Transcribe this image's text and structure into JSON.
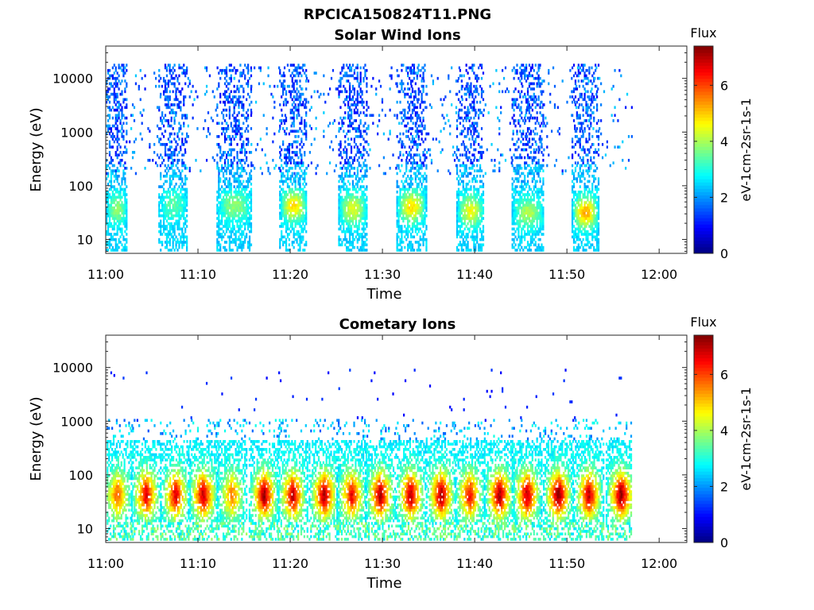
{
  "figure": {
    "title": "RPCICA150824T11.PNG"
  },
  "chart_data": [
    {
      "type": "heatmap",
      "title": "Solar Wind Ions",
      "xlabel": "Time",
      "ylabel": "Energy (eV)",
      "x_ticks": [
        "11:00",
        "11:10",
        "11:20",
        "11:30",
        "11:40",
        "11:50",
        "12:00"
      ],
      "xlim_minutes": [
        0,
        63
      ],
      "y_scale": "log",
      "y_ticks": [
        "10",
        "100",
        "1000",
        "10000"
      ],
      "ylim": [
        5.5,
        40000
      ],
      "data_end_minute": 57,
      "colorbar": {
        "label": "eV-1cm-2sr-1s-1",
        "title": "Flux",
        "ticks": [
          "0",
          "2",
          "4",
          "6"
        ],
        "range": [
          0,
          7.4
        ],
        "colormap": "jet"
      },
      "pulses": [
        {
          "start": 0.0,
          "end": 2.3,
          "peak_energy": 35,
          "peak_flux": 3.6
        },
        {
          "start": 5.7,
          "end": 8.8,
          "peak_energy": 40,
          "peak_flux": 3.2
        },
        {
          "start": 12.0,
          "end": 15.8,
          "peak_energy": 40,
          "peak_flux": 3.6
        },
        {
          "start": 18.8,
          "end": 21.8,
          "peak_energy": 40,
          "peak_flux": 4.6
        },
        {
          "start": 25.2,
          "end": 28.3,
          "peak_energy": 35,
          "peak_flux": 4.2
        },
        {
          "start": 31.5,
          "end": 34.7,
          "peak_energy": 38,
          "peak_flux": 4.6
        },
        {
          "start": 38.0,
          "end": 41.0,
          "peak_energy": 32,
          "peak_flux": 4.3
        },
        {
          "start": 44.0,
          "end": 47.5,
          "peak_energy": 30,
          "peak_flux": 3.8
        },
        {
          "start": 50.5,
          "end": 53.4,
          "peak_energy": 30,
          "peak_flux": 5.0
        }
      ]
    },
    {
      "type": "heatmap",
      "title": "Cometary Ions",
      "xlabel": "Time",
      "ylabel": "Energy (eV)",
      "x_ticks": [
        "11:00",
        "11:10",
        "11:20",
        "11:30",
        "11:40",
        "11:50",
        "12:00"
      ],
      "xlim_minutes": [
        0,
        63
      ],
      "y_scale": "log",
      "y_ticks": [
        "10",
        "100",
        "1000",
        "10000"
      ],
      "ylim": [
        5.5,
        40000
      ],
      "data_end_minute": 57,
      "colorbar": {
        "label": "eV-1cm-2sr-1s-1",
        "title": "Flux",
        "ticks": [
          "0",
          "2",
          "4",
          "6"
        ],
        "range": [
          0,
          7.4
        ],
        "colormap": "jet"
      },
      "bursts": [
        {
          "center": 1.2,
          "peak_flux": 5.6
        },
        {
          "center": 4.3,
          "peak_flux": 6.5
        },
        {
          "center": 7.5,
          "peak_flux": 6.6
        },
        {
          "center": 10.5,
          "peak_flux": 6.8
        },
        {
          "center": 13.6,
          "peak_flux": 5.4
        },
        {
          "center": 17.1,
          "peak_flux": 7.0
        },
        {
          "center": 20.2,
          "peak_flux": 6.8
        },
        {
          "center": 23.6,
          "peak_flux": 7.0
        },
        {
          "center": 26.6,
          "peak_flux": 6.4
        },
        {
          "center": 29.7,
          "peak_flux": 6.9
        },
        {
          "center": 33.0,
          "peak_flux": 6.9
        },
        {
          "center": 36.3,
          "peak_flux": 7.0
        },
        {
          "center": 39.4,
          "peak_flux": 6.3
        },
        {
          "center": 42.6,
          "peak_flux": 7.0
        },
        {
          "center": 45.6,
          "peak_flux": 6.8
        },
        {
          "center": 49.0,
          "peak_flux": 7.2
        },
        {
          "center": 52.3,
          "peak_flux": 6.8
        },
        {
          "center": 55.8,
          "peak_flux": 7.2
        }
      ]
    }
  ]
}
